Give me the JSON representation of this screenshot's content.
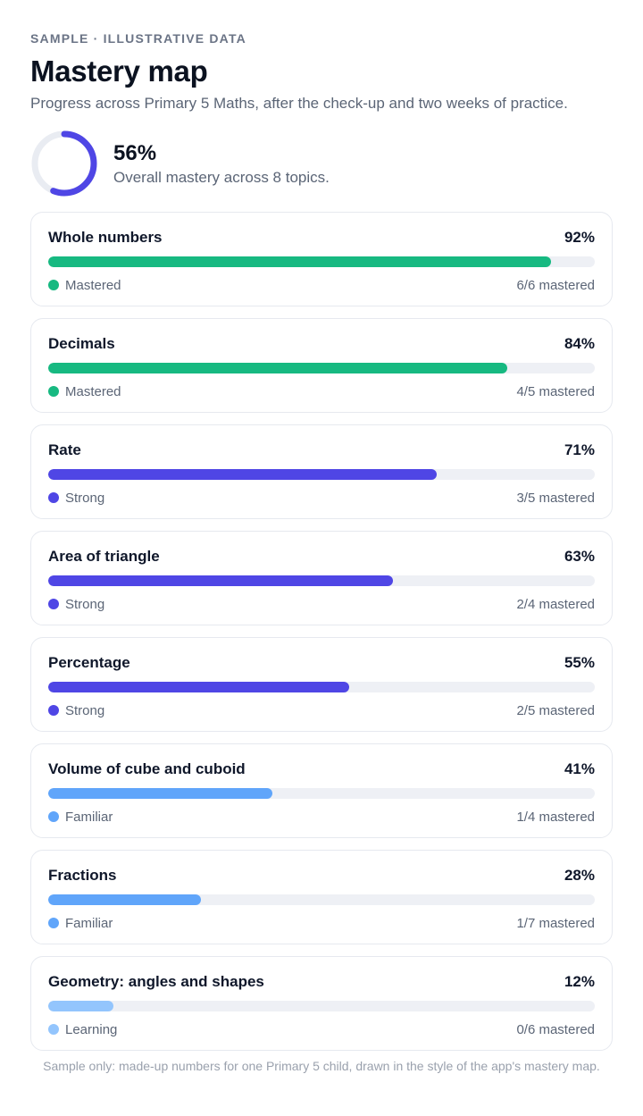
{
  "header": {
    "eyebrow": "SAMPLE · ILLUSTRATIVE DATA",
    "title": "Mastery map",
    "subtitle": "Progress across Primary 5 Maths, after the check-up and two weeks of practice."
  },
  "summary": {
    "percent_label": "56%",
    "percent_value": 56,
    "description": "Overall mastery across 8 topics."
  },
  "colors": {
    "mastered": "#17b981",
    "strong": "#4f46e5",
    "familiar": "#60a5fa",
    "learning": "#93c5fd",
    "track": "#eef0f5",
    "ring_track": "#e9ecf2"
  },
  "topics": [
    {
      "name": "Whole numbers",
      "percent_label": "92%",
      "percent": 92,
      "status": "Mastered",
      "level": "mastered",
      "mastered_text": "6/6 mastered"
    },
    {
      "name": "Decimals",
      "percent_label": "84%",
      "percent": 84,
      "status": "Mastered",
      "level": "mastered",
      "mastered_text": "4/5 mastered"
    },
    {
      "name": "Rate",
      "percent_label": "71%",
      "percent": 71,
      "status": "Strong",
      "level": "strong",
      "mastered_text": "3/5 mastered"
    },
    {
      "name": "Area of triangle",
      "percent_label": "63%",
      "percent": 63,
      "status": "Strong",
      "level": "strong",
      "mastered_text": "2/4 mastered"
    },
    {
      "name": "Percentage",
      "percent_label": "55%",
      "percent": 55,
      "status": "Strong",
      "level": "strong",
      "mastered_text": "2/5 mastered"
    },
    {
      "name": "Volume of cube and cuboid",
      "percent_label": "41%",
      "percent": 41,
      "status": "Familiar",
      "level": "familiar",
      "mastered_text": "1/4 mastered"
    },
    {
      "name": "Fractions",
      "percent_label": "28%",
      "percent": 28,
      "status": "Familiar",
      "level": "familiar",
      "mastered_text": "1/7 mastered"
    },
    {
      "name": "Geometry: angles and shapes",
      "percent_label": "12%",
      "percent": 12,
      "status": "Learning",
      "level": "learning",
      "mastered_text": "0/6 mastered"
    }
  ],
  "footnote": "Sample only: made-up numbers for one Primary 5 child, drawn in the style of the app's mastery map."
}
